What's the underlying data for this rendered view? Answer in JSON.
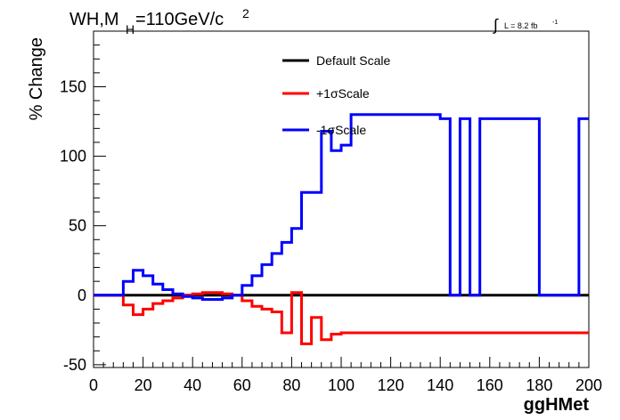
{
  "chart_data": {
    "type": "line",
    "title": "WH,M_{H}=110GeV/c^{2}",
    "title_parts": {
      "main": "WH,M",
      "sub": "H",
      "rest": "=110GeV/c",
      "sup": "2"
    },
    "luminosity": {
      "symbol": "∫",
      "text": "L = 8.2 fb",
      "sup": "-1"
    },
    "xlabel": "ggHMet",
    "ylabel": "% Change",
    "xlim": [
      0,
      200
    ],
    "ylim": [
      -52,
      190
    ],
    "x_ticks": [
      0,
      20,
      40,
      60,
      80,
      100,
      120,
      140,
      160,
      180,
      200
    ],
    "x_tick_labels": [
      "0",
      "20",
      "40",
      "60",
      "80",
      "100",
      "120",
      "140",
      "160",
      "180",
      "200"
    ],
    "y_ticks": [
      -50,
      0,
      50,
      100,
      150
    ],
    "y_tick_labels": [
      "-50",
      "0",
      "50",
      "100",
      "150"
    ],
    "grid": false,
    "legend_position": "top-center",
    "bin_edges": [
      0,
      4,
      8,
      12,
      16,
      20,
      24,
      28,
      32,
      36,
      40,
      44,
      48,
      52,
      56,
      60,
      64,
      68,
      72,
      76,
      80,
      84,
      88,
      92,
      96,
      100,
      104,
      108,
      112,
      116,
      120,
      124,
      128,
      132,
      136,
      140,
      144,
      148,
      152,
      156,
      160,
      164,
      168,
      172,
      176,
      180,
      184,
      188,
      192,
      196,
      200
    ],
    "series": [
      {
        "name": "Default Scale",
        "color": "#000000",
        "values": [
          0,
          0,
          0,
          0,
          0,
          0,
          0,
          0,
          0,
          0,
          0,
          0,
          0,
          0,
          0,
          0,
          0,
          0,
          0,
          0,
          0,
          0,
          0,
          0,
          0,
          0,
          0,
          0,
          0,
          0,
          0,
          0,
          0,
          0,
          0,
          0,
          0,
          0,
          0,
          0,
          0,
          0,
          0,
          0,
          0,
          0,
          0,
          0,
          0,
          0
        ]
      },
      {
        "name": "+1σScale",
        "color": "#ff0000",
        "values": [
          0,
          0,
          0,
          -7,
          -14,
          -10,
          -6,
          -4,
          -2,
          0,
          1,
          2,
          2,
          1,
          0,
          -4,
          -8,
          -10,
          -12,
          -27,
          2,
          -35,
          -16,
          -32,
          -28,
          -27,
          -27,
          -27,
          -27,
          -27,
          -27,
          -27,
          -27,
          -27,
          -27,
          -27,
          -27,
          -27,
          -27,
          -27,
          -27,
          -27,
          -27,
          -27,
          -27,
          -27,
          -27,
          -27,
          -27,
          -27
        ]
      },
      {
        "name": "-1σScale",
        "color": "#0000ff",
        "values": [
          0,
          0,
          0,
          10,
          18,
          14,
          8,
          4,
          1,
          -1,
          -2,
          -3,
          -3,
          -2,
          0,
          7,
          14,
          22,
          30,
          38,
          48,
          74,
          74,
          118,
          104,
          108,
          130,
          130,
          130,
          130,
          130,
          130,
          130,
          130,
          130,
          127,
          0,
          127,
          0,
          127,
          127,
          127,
          127,
          127,
          127,
          0,
          0,
          0,
          0,
          127
        ]
      }
    ]
  }
}
